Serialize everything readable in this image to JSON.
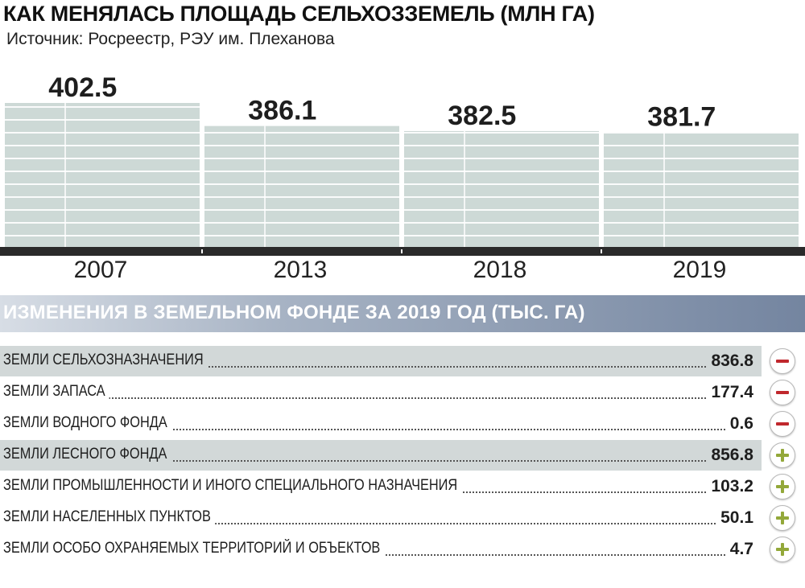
{
  "header": {
    "title": "КАК МЕНЯЛАСЬ ПЛОЩАДЬ СЕЛЬХОЗЗЕМЕЛЬ (МЛН ГА)",
    "source": "Источник: Росреестр, РЭУ им. Плеханова"
  },
  "chart_data": {
    "type": "bar",
    "title": "КАК МЕНЯЛАСЬ ПЛОЩАДЬ СЕЛЬХОЗЗЕМЕЛЬ (МЛН ГА)",
    "categories": [
      "2007",
      "2013",
      "2018",
      "2019"
    ],
    "values": [
      402.5,
      386.1,
      382.5,
      381.7
    ],
    "value_labels": [
      "402.5",
      "386.1",
      "382.5",
      "381.7"
    ],
    "xlabel": "",
    "ylabel": "",
    "grid": false,
    "bar_color": "#cdd9d6"
  },
  "changes": {
    "title": "ИЗМЕНЕНИЯ В ЗЕМЕЛЬНОМ ФОНДЕ ЗА 2019 ГОД (ТЫС. ГА)",
    "items": [
      {
        "label": "ЗЕМЛИ СЕЛЬХОЗНАЗНАЧЕНИЯ",
        "value": "836.8",
        "sign": "minus",
        "shaded": true
      },
      {
        "label": "ЗЕМЛИ ЗАПАСА",
        "value": "177.4",
        "sign": "minus",
        "shaded": false
      },
      {
        "label": "ЗЕМЛИ ВОДНОГО ФОНДА",
        "value": "0.6",
        "sign": "minus",
        "shaded": false
      },
      {
        "label": "ЗЕМЛИ ЛЕСНОГО ФОНДА",
        "value": "856.8",
        "sign": "plus",
        "shaded": true
      },
      {
        "label": "ЗЕМЛИ ПРОМЫШЛЕННОСТИ И ИНОГО СПЕЦИАЛЬНОГО НАЗНАЧЕНИЯ",
        "value": "103.2",
        "sign": "plus",
        "shaded": false
      },
      {
        "label": "ЗЕМЛИ НАСЕЛЕННЫХ ПУНКТОВ",
        "value": "50.1",
        "sign": "plus",
        "shaded": false
      },
      {
        "label": "ЗЕМЛИ ОСОБО ОХРАНЯЕМЫХ ТЕРРИТОРИЙ И ОБЪЕКТОВ",
        "value": "4.7",
        "sign": "plus",
        "shaded": false
      }
    ],
    "colors": {
      "minus": "#c0282d",
      "plus": "#93a83a"
    }
  }
}
